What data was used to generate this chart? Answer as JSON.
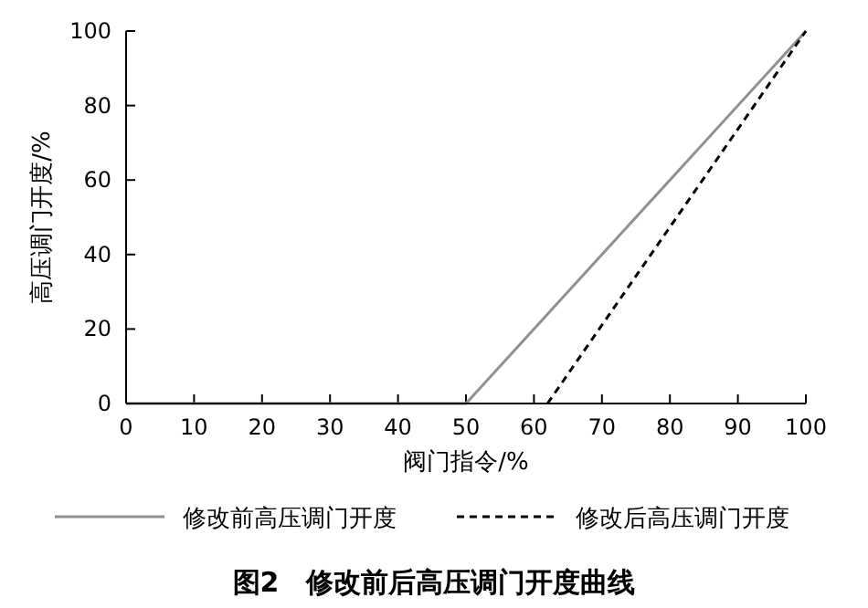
{
  "chart_data": {
    "type": "line",
    "title": "图2　修改前后高压调门开度曲线",
    "xlabel": "阀门指令/%",
    "ylabel": "高压调门开度/%",
    "xlim": [
      0,
      100
    ],
    "ylim": [
      0,
      100
    ],
    "xticks": [
      0,
      10,
      20,
      30,
      40,
      50,
      60,
      70,
      80,
      90,
      100
    ],
    "yticks": [
      0,
      20,
      40,
      60,
      80,
      100
    ],
    "legend": "bottom",
    "grid": false,
    "series": [
      {
        "name": "修改前高压调门开度",
        "color": "#909090",
        "line_style": "solid",
        "x": [
          0,
          50,
          100
        ],
        "values": [
          0,
          0,
          100
        ]
      },
      {
        "name": "修改后高压调门开度",
        "color": "#000000",
        "line_style": "dashed",
        "x": [
          62,
          100
        ],
        "values": [
          0,
          100
        ]
      }
    ]
  }
}
